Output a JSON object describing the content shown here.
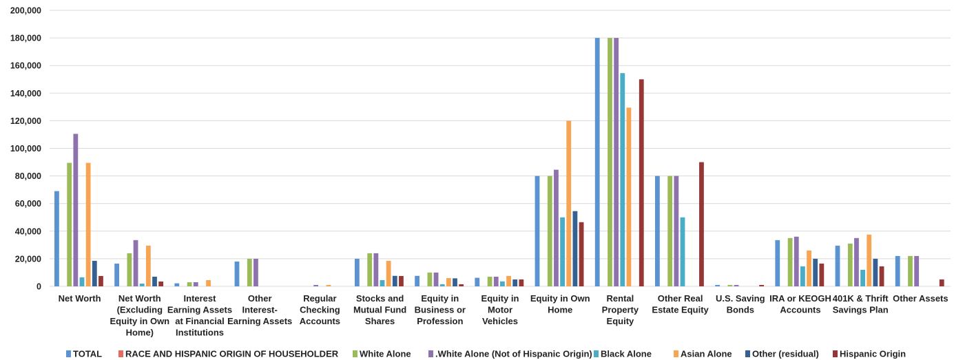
{
  "chart_data": {
    "type": "bar",
    "ylim": [
      0,
      200000
    ],
    "y_ticks": [
      "0",
      "20,000",
      "40,000",
      "60,000",
      "80,000",
      "100,000",
      "120,000",
      "140,000",
      "160,000",
      "180,000",
      "200,000"
    ],
    "y_tick_values": [
      0,
      20000,
      40000,
      60000,
      80000,
      100000,
      120000,
      140000,
      160000,
      180000,
      200000
    ],
    "grid": true,
    "legend_position": "bottom",
    "categories": [
      [
        "Net Worth"
      ],
      [
        "Net Worth",
        "(Excluding",
        "Equity in Own",
        "Home)"
      ],
      [
        "Interest",
        "Earning Assets",
        "at Financial",
        "Institutions"
      ],
      [
        "Other",
        "Interest-",
        "Earning Assets"
      ],
      [
        "Regular",
        "Checking",
        "Accounts"
      ],
      [
        "Stocks and",
        "Mutual Fund",
        "Shares"
      ],
      [
        "Equity in",
        "Business or",
        "Profession"
      ],
      [
        "Equity in",
        "Motor",
        "Vehicles"
      ],
      [
        "Equity in Own",
        "Home"
      ],
      [
        "Rental",
        "Property",
        "Equity"
      ],
      [
        "Other Real",
        "Estate Equity"
      ],
      [
        "U.S. Saving",
        "Bonds"
      ],
      [
        "IRA or KEOGH",
        "Accounts"
      ],
      [
        "401K & Thrift",
        "Savings Plan"
      ],
      [
        "Other Assets"
      ]
    ],
    "series": [
      {
        "name": "TOTAL",
        "color": "#5b93d1",
        "values": [
          69000,
          16500,
          2200,
          18000,
          0,
          20000,
          7600,
          6200,
          80000,
          180000,
          80000,
          1000,
          33500,
          29500,
          22000
        ]
      },
      {
        "name": "RACE AND HISPANIC ORIGIN OF HOUSEHOLDER",
        "color": "#e36c5c",
        "values": [
          0,
          0,
          0,
          0,
          0,
          0,
          0,
          0,
          0,
          0,
          0,
          0,
          0,
          0,
          0
        ]
      },
      {
        "name": "White Alone",
        "color": "#9bbb59",
        "values": [
          89500,
          24000,
          3000,
          20000,
          0,
          24000,
          10000,
          7000,
          80000,
          180000,
          80000,
          1000,
          35000,
          31000,
          22000
        ]
      },
      {
        "name": ".White Alone (Not of Hispanic Origin)",
        "color": "#8e72ad",
        "values": [
          110500,
          33500,
          3000,
          20000,
          1000,
          24000,
          10000,
          7000,
          84500,
          180000,
          80000,
          1000,
          36000,
          35000,
          22000
        ]
      },
      {
        "name": "Black Alone",
        "color": "#4bacc6",
        "values": [
          6500,
          2000,
          0,
          0,
          0,
          4500,
          1500,
          3600,
          50000,
          154500,
          50000,
          0,
          14500,
          12000,
          0
        ]
      },
      {
        "name": "Asian Alone",
        "color": "#f7a453",
        "values": [
          89500,
          29500,
          4500,
          0,
          1000,
          18500,
          6000,
          7500,
          120000,
          129500,
          0,
          0,
          26000,
          37500,
          0
        ]
      },
      {
        "name": "Other (residual)",
        "color": "#366092",
        "values": [
          18500,
          7000,
          0,
          0,
          0,
          7600,
          5800,
          5000,
          54500,
          0,
          0,
          0,
          20000,
          20000,
          0
        ]
      },
      {
        "name": "Hispanic Origin",
        "color": "#953735",
        "values": [
          7500,
          3500,
          0,
          0,
          0,
          7500,
          1500,
          5000,
          46500,
          150000,
          90000,
          1000,
          16500,
          14500,
          5000
        ]
      }
    ]
  }
}
